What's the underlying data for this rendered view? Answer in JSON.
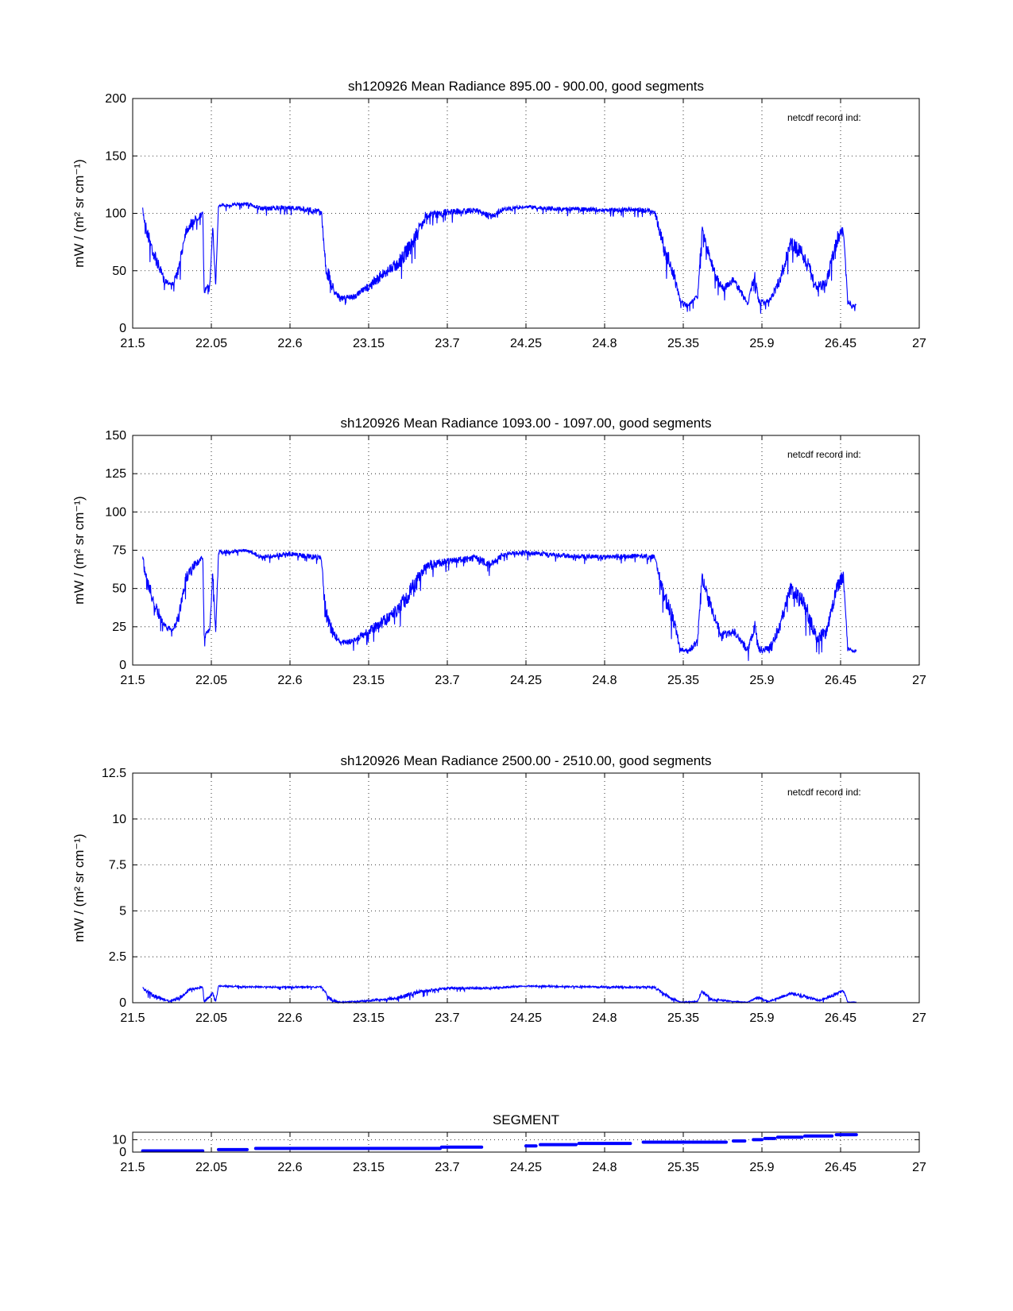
{
  "chart_data": [
    {
      "type": "line",
      "title": "sh120926 Mean Radiance 895.00 - 900.00, good segments",
      "ylabel": "mW / (m² sr cm⁻¹)",
      "annotation": "netcdf record ind:",
      "xlim": [
        21.5,
        27
      ],
      "ylim": [
        0,
        200
      ],
      "xticks": [
        "21.5",
        "22.05",
        "22.6",
        "23.15",
        "23.7",
        "24.25",
        "24.8",
        "25.35",
        "25.9",
        "26.45",
        "27"
      ],
      "yticks": [
        "0",
        "50",
        "100",
        "150",
        "200"
      ],
      "series": [
        {
          "name": "radiance",
          "color": "#0000ff",
          "profile": [
            [
              21.57,
              105,
              6
            ],
            [
              21.6,
              90,
              12
            ],
            [
              21.65,
              70,
              12
            ],
            [
              21.72,
              45,
              6
            ],
            [
              21.78,
              40,
              4
            ],
            [
              21.82,
              55,
              10
            ],
            [
              21.87,
              90,
              10
            ],
            [
              21.93,
              98,
              8
            ],
            [
              21.99,
              102,
              4
            ],
            [
              22.0,
              35,
              6
            ],
            [
              22.04,
              40,
              4
            ],
            [
              22.06,
              95,
              8
            ],
            [
              22.08,
              38,
              4
            ],
            [
              22.1,
              108,
              3
            ],
            [
              22.3,
              110,
              3
            ],
            [
              22.4,
              106,
              4
            ],
            [
              22.6,
              107,
              4
            ],
            [
              22.82,
              104,
              5
            ],
            [
              22.85,
              60,
              15
            ],
            [
              22.9,
              40,
              10
            ],
            [
              22.95,
              28,
              4
            ],
            [
              23.05,
              30,
              5
            ],
            [
              23.15,
              40,
              8
            ],
            [
              23.25,
              52,
              10
            ],
            [
              23.35,
              62,
              12
            ],
            [
              23.45,
              80,
              15
            ],
            [
              23.55,
              102,
              8
            ],
            [
              23.7,
              104,
              6
            ],
            [
              23.9,
              105,
              5
            ],
            [
              24.0,
              100,
              6
            ],
            [
              24.1,
              106,
              4
            ],
            [
              24.25,
              107,
              3
            ],
            [
              24.5,
              106,
              4
            ],
            [
              24.8,
              105,
              4
            ],
            [
              25.05,
              105,
              4
            ],
            [
              25.15,
              104,
              5
            ],
            [
              25.22,
              75,
              15
            ],
            [
              25.28,
              55,
              12
            ],
            [
              25.33,
              25,
              4
            ],
            [
              25.38,
              22,
              4
            ],
            [
              25.45,
              30,
              6
            ],
            [
              25.48,
              90,
              10
            ],
            [
              25.55,
              60,
              10
            ],
            [
              25.62,
              38,
              8
            ],
            [
              25.7,
              45,
              6
            ],
            [
              25.8,
              25,
              6
            ],
            [
              25.85,
              50,
              10
            ],
            [
              25.88,
              25,
              6
            ],
            [
              25.95,
              25,
              5
            ],
            [
              26.02,
              45,
              10
            ],
            [
              26.1,
              80,
              12
            ],
            [
              26.2,
              70,
              15
            ],
            [
              26.28,
              40,
              10
            ],
            [
              26.35,
              45,
              10
            ],
            [
              26.43,
              85,
              12
            ],
            [
              26.47,
              90,
              10
            ],
            [
              26.5,
              25,
              4
            ],
            [
              26.55,
              20,
              3
            ],
            [
              26.56,
              23,
              3
            ]
          ]
        }
      ]
    },
    {
      "type": "line",
      "title": "sh120926 Mean Radiance 1093.00 - 1097.00, good segments",
      "ylabel": "mW / (m² sr cm⁻¹)",
      "annotation": "netcdf record ind:",
      "xlim": [
        21.5,
        27
      ],
      "ylim": [
        0,
        150
      ],
      "xticks": [
        "21.5",
        "22.05",
        "22.6",
        "23.15",
        "23.7",
        "24.25",
        "24.8",
        "25.35",
        "25.9",
        "26.45",
        "27"
      ],
      "yticks": [
        "0",
        "25",
        "50",
        "75",
        "100",
        "125",
        "150"
      ],
      "series": [
        {
          "name": "radiance",
          "color": "#0000ff",
          "profile": [
            [
              21.57,
              72,
              6
            ],
            [
              21.6,
              60,
              10
            ],
            [
              21.65,
              45,
              10
            ],
            [
              21.72,
              28,
              5
            ],
            [
              21.78,
              24,
              3
            ],
            [
              21.82,
              35,
              8
            ],
            [
              21.87,
              60,
              8
            ],
            [
              21.93,
              68,
              6
            ],
            [
              21.99,
              72,
              3
            ],
            [
              22.0,
              22,
              5
            ],
            [
              22.04,
              25,
              3
            ],
            [
              22.06,
              65,
              8
            ],
            [
              22.08,
              22,
              3
            ],
            [
              22.1,
              75,
              3
            ],
            [
              22.3,
              76,
              2
            ],
            [
              22.4,
              72,
              3
            ],
            [
              22.6,
              74,
              3
            ],
            [
              22.82,
              72,
              4
            ],
            [
              22.85,
              40,
              12
            ],
            [
              22.9,
              25,
              8
            ],
            [
              22.95,
              16,
              3
            ],
            [
              23.05,
              18,
              4
            ],
            [
              23.15,
              25,
              6
            ],
            [
              23.25,
              32,
              8
            ],
            [
              23.35,
              40,
              10
            ],
            [
              23.45,
              55,
              12
            ],
            [
              23.55,
              68,
              6
            ],
            [
              23.7,
              70,
              5
            ],
            [
              23.9,
              72,
              4
            ],
            [
              24.0,
              68,
              5
            ],
            [
              24.1,
              74,
              3
            ],
            [
              24.25,
              75,
              3
            ],
            [
              24.5,
              73,
              3
            ],
            [
              24.8,
              72,
              3
            ],
            [
              25.05,
              73,
              3
            ],
            [
              25.15,
              72,
              4
            ],
            [
              25.22,
              50,
              12
            ],
            [
              25.28,
              35,
              10
            ],
            [
              25.33,
              12,
              3
            ],
            [
              25.38,
              10,
              3
            ],
            [
              25.45,
              18,
              5
            ],
            [
              25.48,
              62,
              8
            ],
            [
              25.55,
              40,
              8
            ],
            [
              25.62,
              22,
              6
            ],
            [
              25.7,
              25,
              5
            ],
            [
              25.8,
              12,
              5
            ],
            [
              25.85,
              30,
              8
            ],
            [
              25.88,
              12,
              5
            ],
            [
              25.95,
              13,
              4
            ],
            [
              26.02,
              28,
              8
            ],
            [
              26.1,
              55,
              10
            ],
            [
              26.2,
              45,
              12
            ],
            [
              26.28,
              22,
              8
            ],
            [
              26.35,
              25,
              8
            ],
            [
              26.43,
              58,
              10
            ],
            [
              26.47,
              62,
              8
            ],
            [
              26.5,
              12,
              3
            ],
            [
              26.55,
              10,
              2
            ],
            [
              26.56,
              11,
              2
            ]
          ]
        }
      ]
    },
    {
      "type": "line",
      "title": "sh120926 Mean Radiance 2500.00 - 2510.00, good segments",
      "ylabel": "mW / (m² sr cm⁻¹)",
      "annotation": "netcdf record ind:",
      "xlim": [
        21.5,
        27
      ],
      "ylim": [
        0,
        12.5
      ],
      "xticks": [
        "21.5",
        "22.05",
        "22.6",
        "23.15",
        "23.7",
        "24.25",
        "24.8",
        "25.35",
        "25.9",
        "26.45",
        "27"
      ],
      "yticks": [
        "0",
        "2.5",
        "5",
        "7.5",
        "10",
        "12.5"
      ],
      "series": [
        {
          "name": "radiance",
          "color": "#0000ff",
          "profile": [
            [
              21.57,
              0.85,
              0.15
            ],
            [
              21.65,
              0.5,
              0.25
            ],
            [
              21.75,
              0.15,
              0.1
            ],
            [
              21.82,
              0.3,
              0.2
            ],
            [
              21.9,
              0.8,
              0.15
            ],
            [
              21.99,
              0.9,
              0.1
            ],
            [
              22.0,
              0.1,
              0.1
            ],
            [
              22.06,
              0.6,
              0.2
            ],
            [
              22.08,
              0.1,
              0.1
            ],
            [
              22.1,
              0.95,
              0.08
            ],
            [
              22.4,
              0.9,
              0.1
            ],
            [
              22.82,
              0.9,
              0.1
            ],
            [
              22.88,
              0.3,
              0.2
            ],
            [
              22.95,
              0.05,
              0.05
            ],
            [
              23.15,
              0.15,
              0.1
            ],
            [
              23.35,
              0.35,
              0.2
            ],
            [
              23.5,
              0.7,
              0.2
            ],
            [
              23.7,
              0.85,
              0.12
            ],
            [
              24.0,
              0.85,
              0.12
            ],
            [
              24.25,
              0.95,
              0.08
            ],
            [
              24.8,
              0.9,
              0.1
            ],
            [
              25.15,
              0.9,
              0.1
            ],
            [
              25.25,
              0.4,
              0.2
            ],
            [
              25.33,
              0.05,
              0.03
            ],
            [
              25.45,
              0.1,
              0.05
            ],
            [
              25.48,
              0.7,
              0.15
            ],
            [
              25.55,
              0.25,
              0.15
            ],
            [
              25.7,
              0.1,
              0.05
            ],
            [
              25.8,
              0.05,
              0.03
            ],
            [
              25.87,
              0.35,
              0.15
            ],
            [
              25.95,
              0.1,
              0.05
            ],
            [
              26.1,
              0.6,
              0.2
            ],
            [
              26.2,
              0.45,
              0.2
            ],
            [
              26.3,
              0.15,
              0.1
            ],
            [
              26.43,
              0.6,
              0.2
            ],
            [
              26.47,
              0.75,
              0.15
            ],
            [
              26.5,
              0.05,
              0.03
            ],
            [
              26.56,
              0.05,
              0.02
            ]
          ]
        }
      ]
    },
    {
      "type": "line",
      "title": "SEGMENT",
      "ylabel": "",
      "xlim": [
        21.5,
        27
      ],
      "ylim": [
        0,
        16
      ],
      "xticks": [
        "21.5",
        "22.05",
        "22.6",
        "23.15",
        "23.7",
        "24.25",
        "24.8",
        "25.35",
        "25.9",
        "26.45",
        "27"
      ],
      "yticks": [
        "0",
        "10"
      ],
      "series": [
        {
          "name": "segment",
          "color": "#0000ff",
          "steps": [
            [
              21.57,
              21.99,
              1
            ],
            [
              22.1,
              22.3,
              2
            ],
            [
              22.36,
              23.65,
              3
            ],
            [
              23.66,
              23.94,
              4
            ],
            [
              24.25,
              24.32,
              5
            ],
            [
              24.35,
              24.6,
              6
            ],
            [
              24.62,
              24.98,
              7
            ],
            [
              25.07,
              25.4,
              8
            ],
            [
              25.41,
              25.65,
              8
            ],
            [
              25.7,
              25.78,
              9
            ],
            [
              25.84,
              25.9,
              10
            ],
            [
              25.92,
              25.99,
              11
            ],
            [
              26.01,
              26.18,
              12
            ],
            [
              26.2,
              26.39,
              13
            ],
            [
              26.42,
              26.56,
              14
            ]
          ]
        }
      ]
    }
  ]
}
